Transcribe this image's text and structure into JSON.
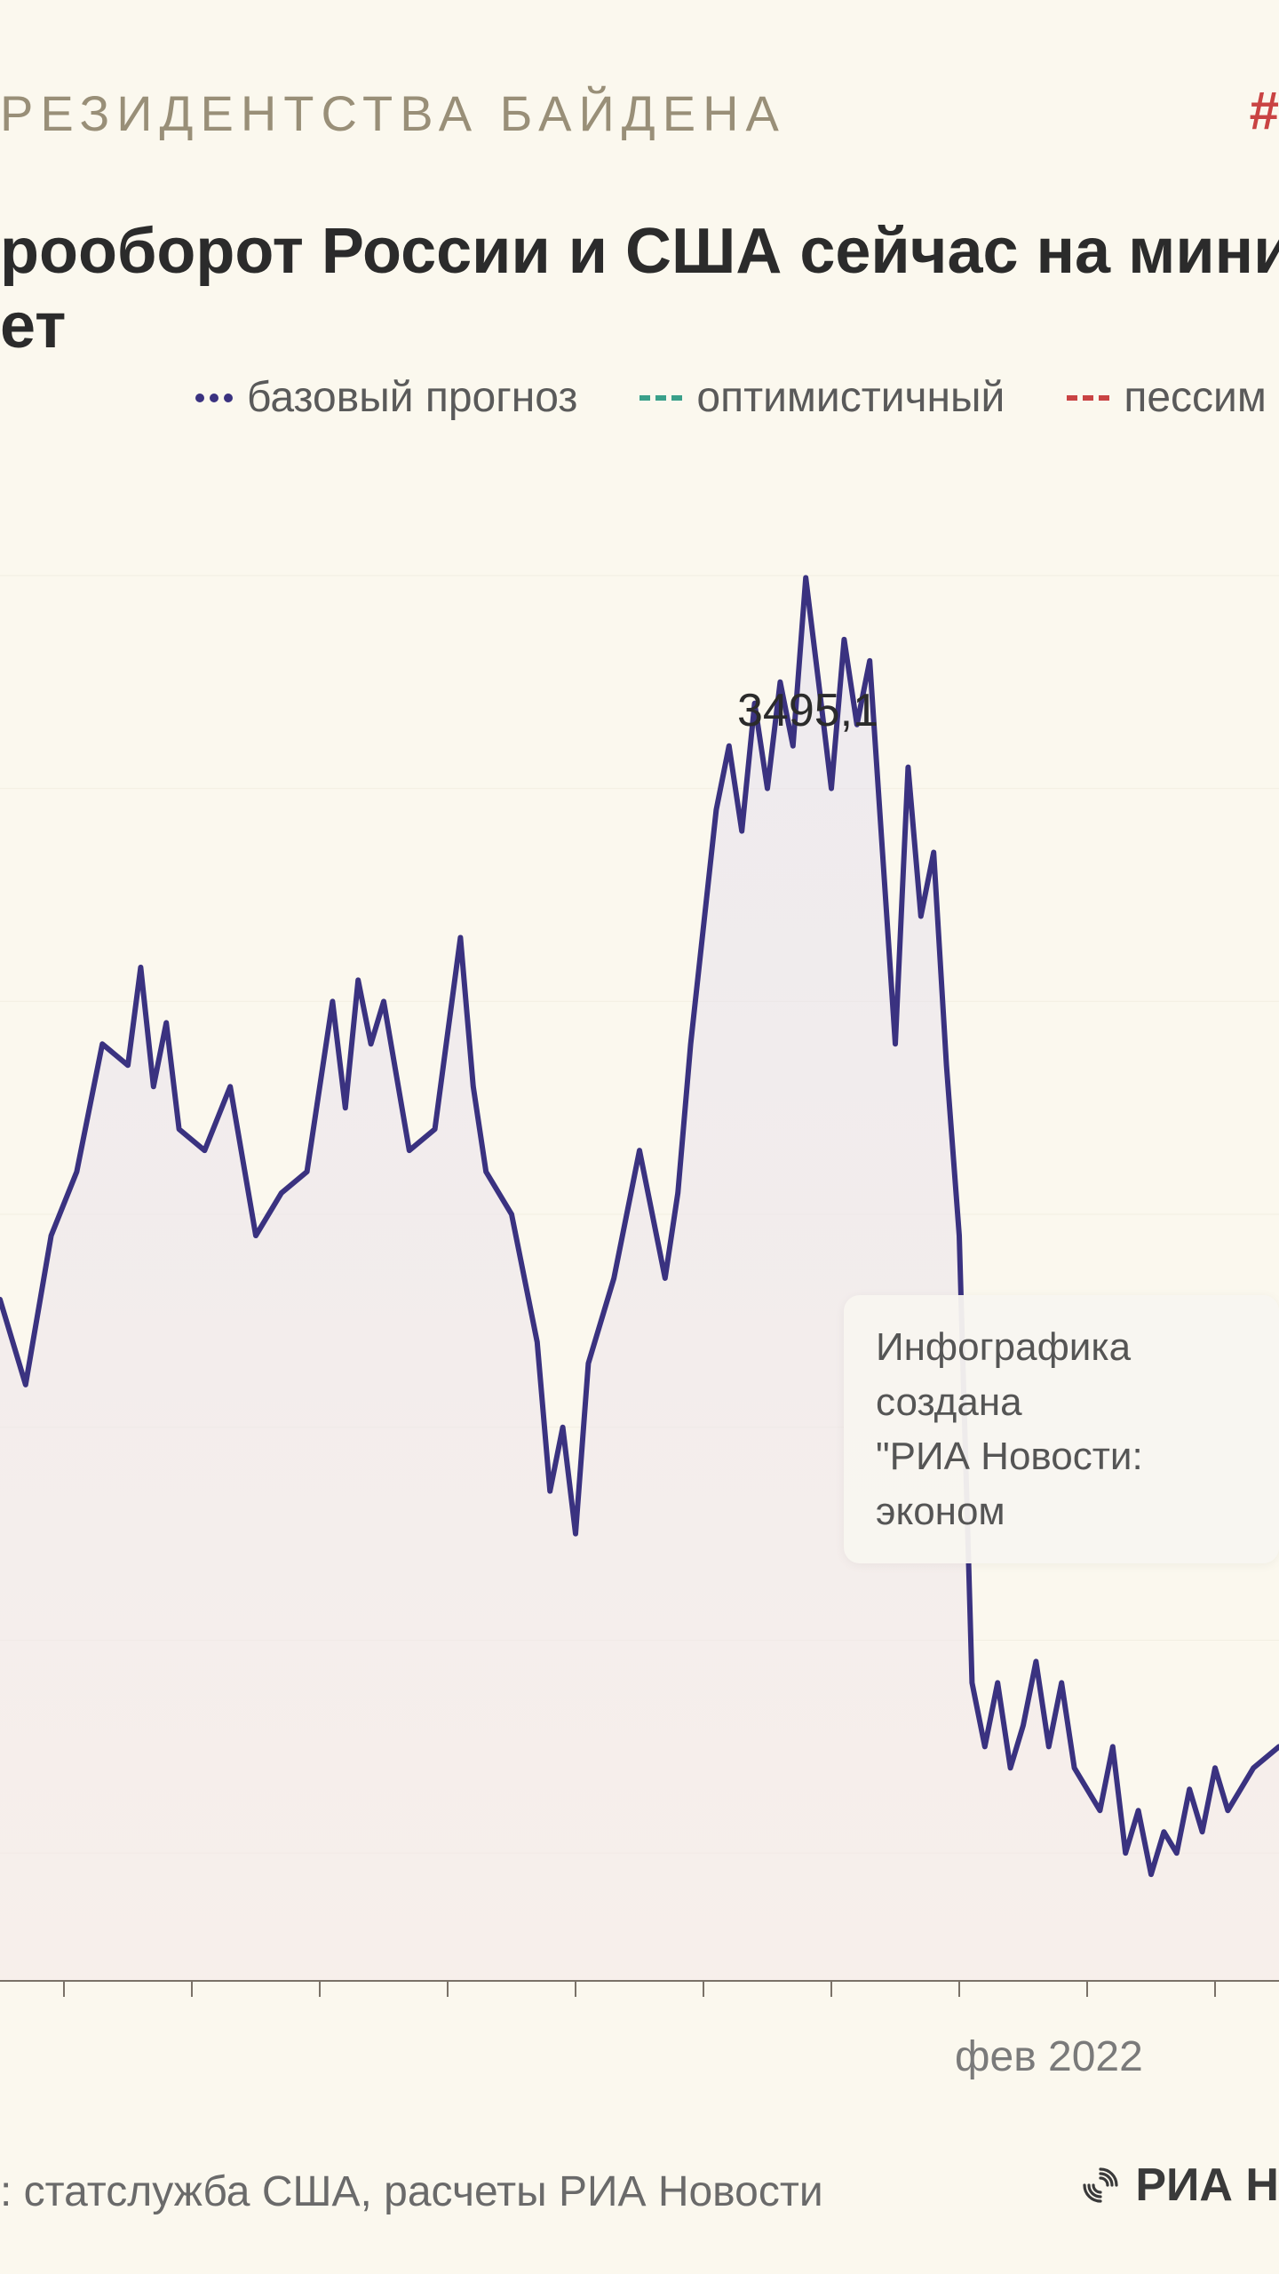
{
  "header_tag": "РЕЗИДЕНТСТВА БАЙДЕНА",
  "hash_symbol": "#",
  "title_line1": "рооборот России и США сейчас на миниму",
  "title_line2": "ет",
  "legend": {
    "base": {
      "label": "базовый прогноз",
      "color": "#3a3280"
    },
    "optimistic": {
      "label": "оптимистичный",
      "color": "#3aa08a"
    },
    "pessimistic": {
      "label": "пессим",
      "color": "#c94343"
    }
  },
  "chart": {
    "type": "area",
    "background_color": "#fbf8ee",
    "line_color": "#3a3280",
    "line_width": 6,
    "fill_color_top": "#e3dfee",
    "fill_color_bottom": "#f4e8e8",
    "fill_opacity": 0.55,
    "grid_color": "#d8d2c2",
    "axis_color": "#7a7268",
    "y_range": [
      200,
      3600
    ],
    "x_range": [
      0,
      100
    ],
    "x_tick_label": "фев 2022",
    "x_tick_position": 75,
    "x_minor_ticks": [
      5,
      15,
      25,
      35,
      45,
      55,
      65,
      75,
      85,
      95
    ],
    "peak_label": "3495,1",
    "peak_x": 63,
    "peak_y": 3495.1,
    "series": [
      [
        0,
        1800
      ],
      [
        2,
        1600
      ],
      [
        4,
        1950
      ],
      [
        6,
        2100
      ],
      [
        8,
        2400
      ],
      [
        10,
        2350
      ],
      [
        11,
        2580
      ],
      [
        12,
        2300
      ],
      [
        13,
        2450
      ],
      [
        14,
        2200
      ],
      [
        16,
        2150
      ],
      [
        18,
        2300
      ],
      [
        20,
        1950
      ],
      [
        22,
        2050
      ],
      [
        24,
        2100
      ],
      [
        26,
        2500
      ],
      [
        27,
        2250
      ],
      [
        28,
        2550
      ],
      [
        29,
        2400
      ],
      [
        30,
        2500
      ],
      [
        32,
        2150
      ],
      [
        34,
        2200
      ],
      [
        36,
        2650
      ],
      [
        37,
        2300
      ],
      [
        38,
        2100
      ],
      [
        40,
        2000
      ],
      [
        42,
        1700
      ],
      [
        43,
        1350
      ],
      [
        44,
        1500
      ],
      [
        45,
        1250
      ],
      [
        46,
        1650
      ],
      [
        48,
        1850
      ],
      [
        50,
        2150
      ],
      [
        52,
        1850
      ],
      [
        53,
        2050
      ],
      [
        54,
        2400
      ],
      [
        56,
        2950
      ],
      [
        57,
        3100
      ],
      [
        58,
        2900
      ],
      [
        59,
        3200
      ],
      [
        60,
        3000
      ],
      [
        61,
        3250
      ],
      [
        62,
        3100
      ],
      [
        63,
        3495
      ],
      [
        64,
        3250
      ],
      [
        65,
        3000
      ],
      [
        66,
        3350
      ],
      [
        67,
        3150
      ],
      [
        68,
        3300
      ],
      [
        69,
        2850
      ],
      [
        70,
        2400
      ],
      [
        71,
        3050
      ],
      [
        72,
        2700
      ],
      [
        73,
        2850
      ],
      [
        74,
        2350
      ],
      [
        75,
        1950
      ],
      [
        76,
        900
      ],
      [
        77,
        750
      ],
      [
        78,
        900
      ],
      [
        79,
        700
      ],
      [
        80,
        800
      ],
      [
        81,
        950
      ],
      [
        82,
        750
      ],
      [
        83,
        900
      ],
      [
        84,
        700
      ],
      [
        86,
        600
      ],
      [
        87,
        750
      ],
      [
        88,
        500
      ],
      [
        89,
        600
      ],
      [
        90,
        450
      ],
      [
        91,
        550
      ],
      [
        92,
        500
      ],
      [
        93,
        650
      ],
      [
        94,
        550
      ],
      [
        95,
        700
      ],
      [
        96,
        600
      ],
      [
        98,
        700
      ],
      [
        100,
        750
      ]
    ]
  },
  "tooltip": {
    "line1": "Инфографика создана",
    "line2": "\"РИА Новости: эконом"
  },
  "source": ": статслужба США, расчеты РИА Новости",
  "logo_text": "РИА Н",
  "colors": {
    "bg": "#fbf8ee",
    "tag": "#998f78",
    "title": "#2b2b2b",
    "legend_text": "#5a5a5a",
    "source_text": "#6a6a6a"
  }
}
